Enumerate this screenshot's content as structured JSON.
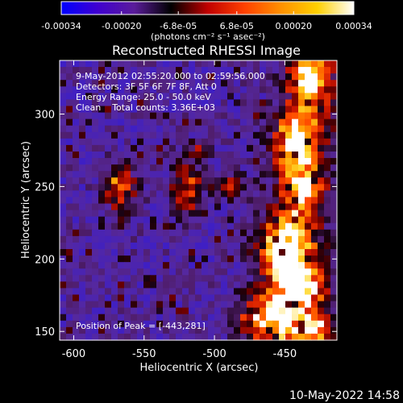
{
  "chart_data": {
    "type": "heatmap",
    "title": "Reconstructed RHESSI Image",
    "xlabel": "Heliocentric X (arcsec)",
    "ylabel": "Heliocentric Y (arcsec)",
    "xlim": [
      -610,
      -413
    ],
    "ylim": [
      144,
      337
    ],
    "x_ticks": [
      "-600",
      "-550",
      "-500",
      "-450"
    ],
    "x_tick_values": [
      -600,
      -550,
      -500,
      -450
    ],
    "y_ticks": [
      "150",
      "200",
      "250",
      "300"
    ],
    "y_tick_values": [
      150,
      200,
      250,
      300
    ],
    "colorbar": {
      "range": [
        -0.00034,
        0.00034
      ],
      "tick_labels": [
        "-0.00034",
        "-0.00020",
        "-6.8e-05",
        "6.8e-05",
        "0.00020",
        "0.00034"
      ],
      "tick_values": [
        -0.00034,
        -0.0002,
        -6.8e-05,
        6.8e-05,
        0.0002,
        0.00034
      ],
      "units": "(photons cm⁻² s⁻¹ asec⁻²)",
      "colors": [
        "#0000ff",
        "#4000d0",
        "#5a1c9a",
        "#000000",
        "#c00000",
        "#ff4000",
        "#ff9000",
        "#ffd000",
        "#ffffff"
      ]
    },
    "annotations": [
      "9-May-2012 02:55:20.000 to 02:59:56.000",
      "Detectors: 3F 5F 6F 7F 8F, Att 0",
      "Energy Range: 25.0 - 50.0 keV",
      "Clean    Total counts: 3.36E+03"
    ],
    "peak_label": "Position of Peak = [-443,281]",
    "peak": {
      "x": -443,
      "y": 281
    },
    "sources": [
      {
        "x": -567,
        "y": 250,
        "strength": 0.85,
        "sx": 8,
        "sy": 12
      },
      {
        "x": -520,
        "y": 250,
        "strength": 0.78,
        "sx": 7,
        "sy": 14
      },
      {
        "x": -490,
        "y": 250,
        "strength": 0.62,
        "sx": 9,
        "sy": 5
      },
      {
        "x": -510,
        "y": 276,
        "strength": 0.45,
        "sx": 5,
        "sy": 5
      },
      {
        "x": -443,
        "y": 281,
        "strength": 1.0,
        "sx": 9,
        "sy": 14
      },
      {
        "x": -432,
        "y": 325,
        "strength": 0.95,
        "sx": 8,
        "sy": 10
      },
      {
        "x": -437,
        "y": 248,
        "strength": 0.75,
        "sx": 8,
        "sy": 10
      },
      {
        "x": -452,
        "y": 210,
        "strength": 0.95,
        "sx": 11,
        "sy": 12
      },
      {
        "x": -440,
        "y": 180,
        "strength": 0.85,
        "sx": 14,
        "sy": 16
      },
      {
        "x": -465,
        "y": 160,
        "strength": 0.7,
        "sx": 14,
        "sy": 10
      },
      {
        "x": -428,
        "y": 150,
        "strength": 0.9,
        "sx": 8,
        "sy": 8
      }
    ]
  },
  "footer": {
    "timestamp": "10-May-2022 14:58"
  }
}
